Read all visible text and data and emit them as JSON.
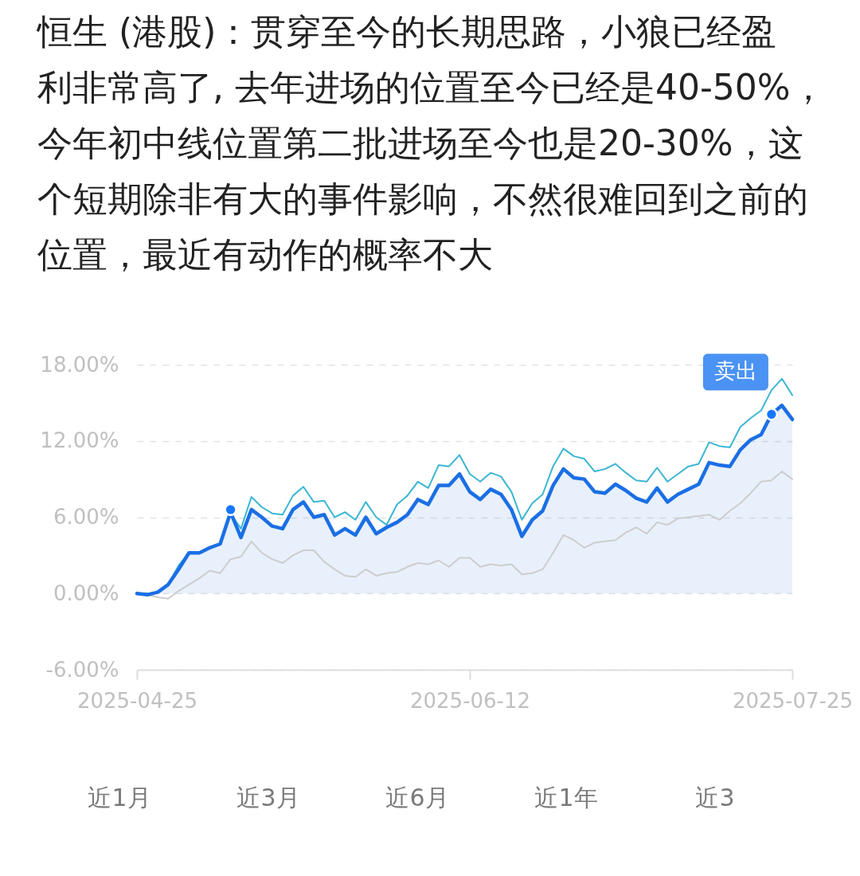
{
  "chart_data": {
    "type": "line",
    "title": "恒生 (港股)：贯穿至今的长期思路，小狼已经盈利非常高了, 去年进场的位置至今已经是40-50%，今年初中线位置第二批进场至今也是20-30%，这个短期除非有大的事件影响，不然很难回到之前的位置，最近有动作的概率不大",
    "categories": [
      "2025-04-25",
      null,
      null,
      null,
      null,
      null,
      null,
      null,
      null,
      null,
      null,
      null,
      null,
      null,
      null,
      null,
      null,
      null,
      null,
      null,
      null,
      null,
      null,
      null,
      null,
      null,
      null,
      null,
      null,
      null,
      null,
      null,
      "2025-06-12",
      null,
      null,
      null,
      null,
      null,
      null,
      null,
      null,
      null,
      null,
      null,
      null,
      null,
      null,
      null,
      null,
      null,
      null,
      null,
      null,
      null,
      null,
      null,
      null,
      null,
      null,
      null,
      null,
      null,
      null,
      "2025-07-25"
    ],
    "ylim": [
      -6,
      18
    ],
    "yticks": [
      {
        "value": -6,
        "label": "-6.00%"
      },
      {
        "value": 0,
        "label": "0.00%"
      },
      {
        "value": 6,
        "label": "6.00%"
      },
      {
        "value": 12,
        "label": "12.00%"
      },
      {
        "value": 18,
        "label": "18.00%"
      }
    ],
    "grid": "y",
    "series": [
      {
        "color": "#cdcdcd",
        "values": [
          0.0,
          -0.1,
          -0.3,
          -0.4,
          0.2,
          0.7,
          1.2,
          1.8,
          1.6,
          2.7,
          2.9,
          4.1,
          3.2,
          2.7,
          2.4,
          3.0,
          3.4,
          3.4,
          2.5,
          1.9,
          1.4,
          1.3,
          1.9,
          1.4,
          1.6,
          1.7,
          2.1,
          2.4,
          2.3,
          2.6,
          2.1,
          2.8,
          2.8,
          2.1,
          2.3,
          2.2,
          2.3,
          1.5,
          1.6,
          1.9,
          3.2,
          4.6,
          4.2,
          3.6,
          4.0,
          4.1,
          4.2,
          4.8,
          5.2,
          4.7,
          5.6,
          5.4,
          5.9,
          6.0,
          6.1,
          6.2,
          5.8,
          6.5,
          7.1,
          7.9,
          8.8,
          8.9,
          9.6,
          9.0
        ]
      },
      {
        "color": "#3bb6d3",
        "values": [
          0.0,
          0.0,
          0.1,
          0.7,
          2.2,
          3.2,
          3.2,
          3.6,
          3.9,
          6.3,
          5.1,
          7.6,
          6.8,
          6.3,
          6.2,
          7.7,
          8.4,
          7.2,
          7.3,
          6.0,
          6.4,
          5.8,
          7.2,
          6.0,
          5.4,
          7.0,
          7.7,
          8.8,
          8.3,
          10.1,
          10.0,
          10.9,
          9.4,
          8.8,
          9.5,
          9.2,
          8.0,
          5.8,
          7.1,
          7.8,
          10.0,
          11.4,
          10.8,
          10.6,
          9.6,
          9.8,
          10.2,
          9.5,
          8.9,
          8.8,
          9.9,
          8.8,
          9.4,
          10.0,
          10.2,
          11.9,
          11.6,
          11.5,
          13.1,
          13.8,
          14.4,
          16.0,
          16.9,
          15.6
        ]
      },
      {
        "type": "area",
        "color": "#1b6fe4",
        "values": [
          0.0,
          -0.1,
          0.1,
          0.7,
          1.9,
          3.2,
          3.2,
          3.6,
          3.9,
          6.4,
          4.4,
          6.6,
          6.0,
          5.3,
          5.1,
          6.6,
          7.2,
          6.0,
          6.2,
          4.6,
          5.1,
          4.6,
          6.0,
          4.7,
          5.2,
          5.6,
          6.2,
          7.4,
          7.0,
          8.5,
          8.5,
          9.4,
          8.0,
          7.4,
          8.2,
          7.8,
          6.6,
          4.5,
          5.8,
          6.5,
          8.5,
          9.8,
          9.1,
          9.0,
          8.0,
          7.9,
          8.6,
          8.1,
          7.5,
          7.2,
          8.3,
          7.2,
          7.8,
          8.2,
          8.6,
          10.3,
          10.1,
          10.0,
          11.3,
          12.1,
          12.5,
          14.1,
          14.8,
          13.7
        ]
      },
      {
        "type": "scatter",
        "color": "#1677ff",
        "values": [
          null,
          null,
          null,
          null,
          null,
          null,
          null,
          null,
          null,
          6.6,
          null,
          null,
          null,
          null,
          null,
          null,
          null,
          null,
          null,
          null,
          null,
          null,
          null,
          null,
          null,
          null,
          null,
          null,
          null,
          null,
          null,
          null,
          null,
          null,
          null,
          null,
          null,
          null,
          null,
          null,
          null,
          null,
          null,
          null,
          null,
          null,
          null,
          null,
          null,
          null,
          null,
          null,
          null,
          null,
          null,
          null,
          null,
          null,
          null,
          null,
          null,
          14.1,
          null,
          null
        ],
        "value_labels": [
          null,
          null,
          null,
          null,
          null,
          null,
          null,
          null,
          null,
          null,
          null,
          null,
          null,
          null,
          null,
          null,
          null,
          null,
          null,
          null,
          null,
          null,
          null,
          null,
          null,
          null,
          null,
          null,
          null,
          null,
          null,
          null,
          null,
          null,
          null,
          null,
          null,
          null,
          null,
          null,
          null,
          null,
          null,
          null,
          null,
          null,
          null,
          null,
          null,
          null,
          null,
          null,
          null,
          null,
          null,
          null,
          null,
          null,
          null,
          null,
          null,
          "卖出",
          null,
          null
        ]
      }
    ],
    "annotations": [
      "近1月",
      "近3月",
      "近6月",
      "近1年",
      "近3"
    ]
  }
}
